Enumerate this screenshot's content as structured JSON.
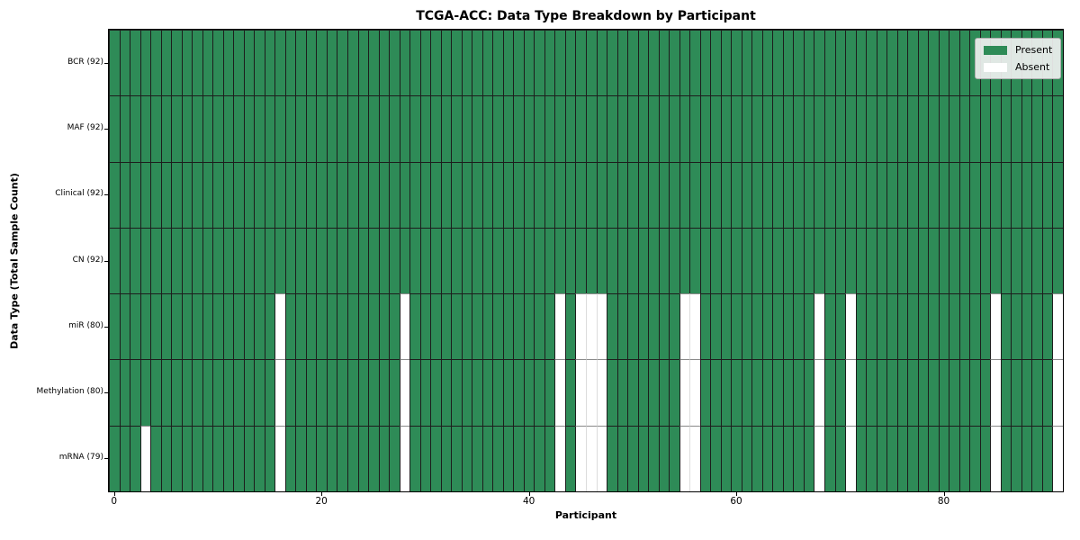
{
  "title": "TCGA-ACC: Data Type Breakdown by Participant",
  "xlabel": "Participant",
  "ylabel": "Data Type (Total Sample Count)",
  "legend": {
    "position": "upper right",
    "entries": [
      {
        "label": "Present",
        "color": "#2e8b57"
      },
      {
        "label": "Absent",
        "color": "#ffffff"
      }
    ]
  },
  "chart_data": {
    "type": "heatmap",
    "title": "TCGA-ACC: Data Type Breakdown by Participant",
    "xlabel": "Participant",
    "ylabel": "Data Type (Total Sample Count)",
    "n_participants": 92,
    "x_ticks": [
      0,
      20,
      40,
      60,
      80
    ],
    "grid": "off",
    "colors": {
      "present": "#2e8b57",
      "absent": "#ffffff"
    },
    "rows": [
      {
        "label": "BCR (92)",
        "data_type": "BCR",
        "count": 92,
        "absent_participants": []
      },
      {
        "label": "MAF (92)",
        "data_type": "MAF",
        "count": 92,
        "absent_participants": []
      },
      {
        "label": "Clinical (92)",
        "data_type": "Clinical",
        "count": 92,
        "absent_participants": []
      },
      {
        "label": "CN (92)",
        "data_type": "CN",
        "count": 92,
        "absent_participants": []
      },
      {
        "label": "miR (80)",
        "data_type": "miR",
        "count": 80,
        "absent_participants": [
          16,
          28,
          43,
          45,
          46,
          47,
          55,
          56,
          68,
          71,
          85,
          91
        ]
      },
      {
        "label": "Methylation (80)",
        "data_type": "Methylation",
        "count": 80,
        "absent_participants": [
          16,
          28,
          43,
          45,
          46,
          47,
          55,
          56,
          68,
          71,
          85,
          91
        ]
      },
      {
        "label": "mRNA (79)",
        "data_type": "mRNA",
        "count": 79,
        "absent_participants": [
          3,
          16,
          28,
          43,
          45,
          46,
          47,
          55,
          56,
          68,
          71,
          85,
          91
        ]
      }
    ]
  }
}
